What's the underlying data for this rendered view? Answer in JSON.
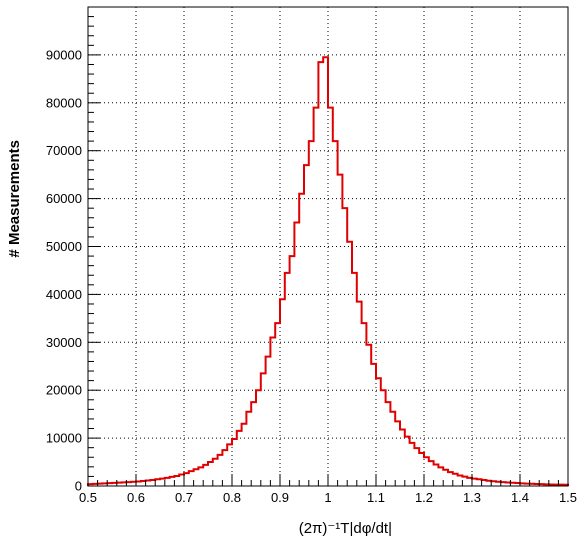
{
  "chart_data": {
    "type": "histogram",
    "title": "",
    "xlabel": "(2π)⁻¹T|dφ/dt|",
    "ylabel": "# Measurements",
    "xlim": [
      0.5,
      1.5
    ],
    "ylim": [
      0,
      100000
    ],
    "grid": true,
    "line_color": "#e00000",
    "bin_width": 0.01,
    "x_ticks": [
      "0.5",
      "0.6",
      "0.7",
      "0.8",
      "0.9",
      "1",
      "1.1",
      "1.2",
      "1.3",
      "1.4",
      "1.5"
    ],
    "y_ticks": [
      "0",
      "10000",
      "20000",
      "30000",
      "40000",
      "50000",
      "60000",
      "70000",
      "80000",
      "90000"
    ],
    "bin_edges_start": 0.5,
    "values": [
      400,
      450,
      500,
      550,
      600,
      650,
      700,
      760,
      820,
      880,
      950,
      1050,
      1150,
      1250,
      1400,
      1550,
      1700,
      1900,
      2100,
      2400,
      2700,
      3100,
      3500,
      3900,
      4400,
      5000,
      5700,
      6500,
      7500,
      8700,
      9800,
      11500,
      13000,
      15500,
      17500,
      20000,
      23500,
      27000,
      31000,
      34000,
      39000,
      44500,
      48000,
      55000,
      61000,
      67000,
      72000,
      79000,
      88500,
      89500,
      79000,
      72000,
      65000,
      58000,
      51000,
      44500,
      38500,
      34000,
      29500,
      25500,
      22500,
      20000,
      17500,
      15500,
      13500,
      11800,
      10300,
      9000,
      7900,
      6900,
      6000,
      5200,
      4500,
      3900,
      3400,
      2900,
      2550,
      2200,
      1950,
      1700,
      1550,
      1400,
      1250,
      1100,
      1000,
      900,
      820,
      740,
      680,
      620,
      560,
      500,
      460,
      420,
      380,
      350,
      320,
      300,
      280,
      260
    ]
  }
}
